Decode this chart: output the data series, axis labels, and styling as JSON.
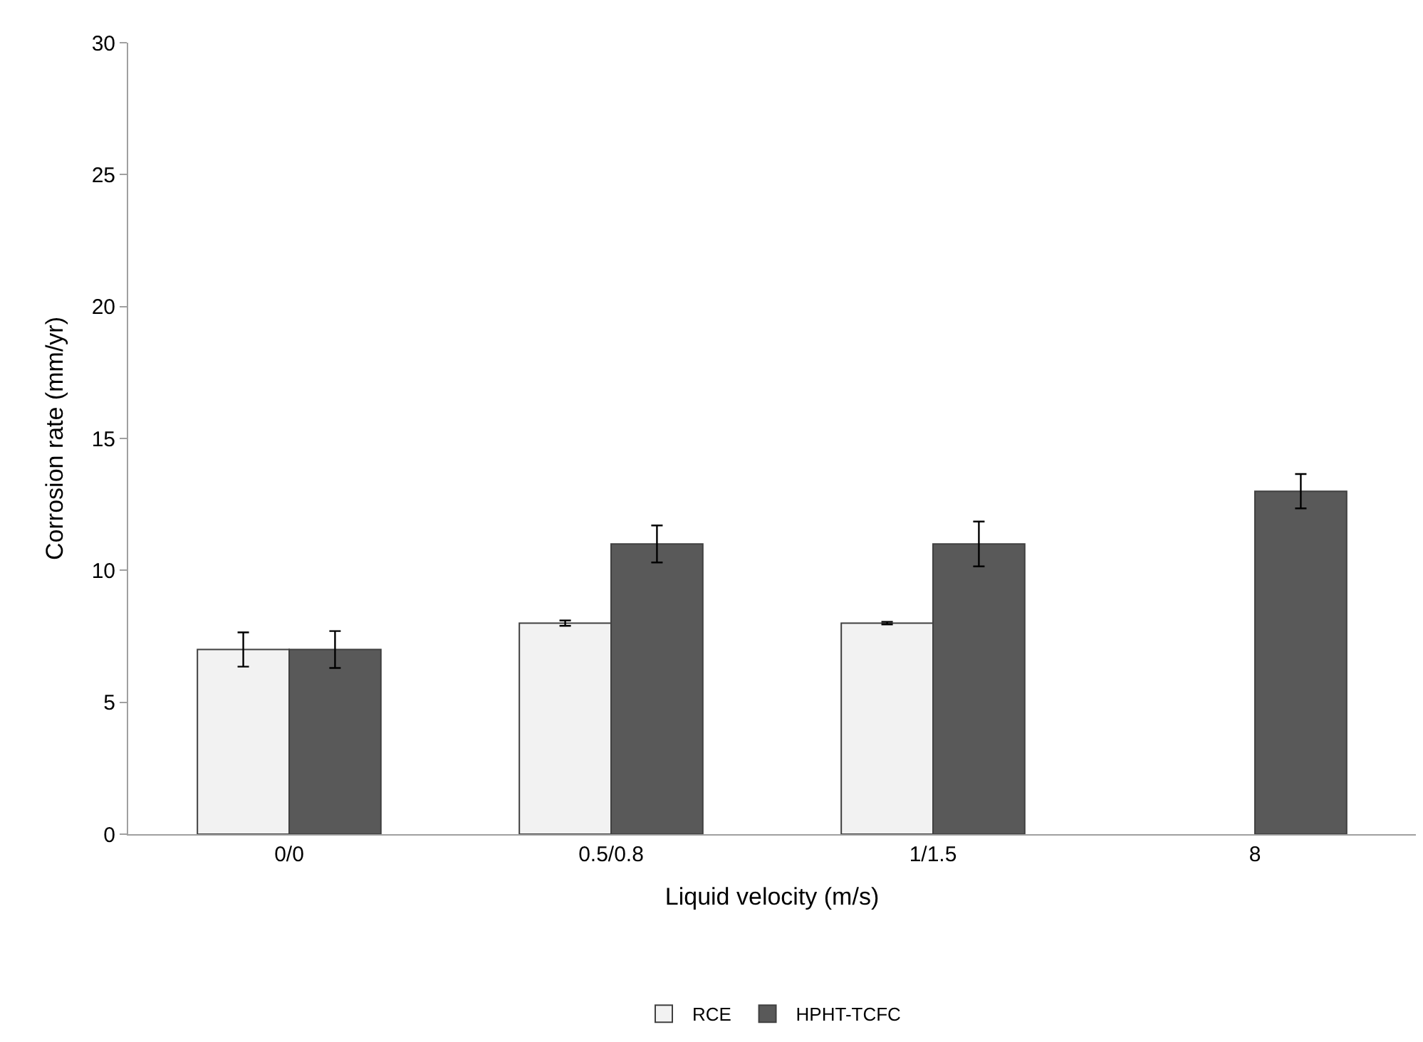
{
  "chart_data": {
    "type": "bar",
    "xlabel": "Liquid velocity (m/s)",
    "ylabel": "Corrosion rate (mm/yr)",
    "categories": [
      "0/0",
      "0.5/0.8",
      "1/1.5",
      "8"
    ],
    "series": [
      {
        "name": "RCE",
        "color": "#f2f2f2",
        "values": [
          7.0,
          8.0,
          8.0,
          null
        ],
        "errors": [
          0.65,
          0.1,
          0.05,
          null
        ]
      },
      {
        "name": "HPHT-TCFC",
        "color": "#595959",
        "values": [
          7.0,
          11.0,
          11.0,
          13.0
        ],
        "errors": [
          0.7,
          0.7,
          0.85,
          0.65
        ]
      }
    ],
    "ylim": [
      0,
      30
    ],
    "yticks": [
      0,
      5,
      10,
      15,
      20,
      25,
      30
    ],
    "grid": false,
    "legend": "bottom"
  }
}
